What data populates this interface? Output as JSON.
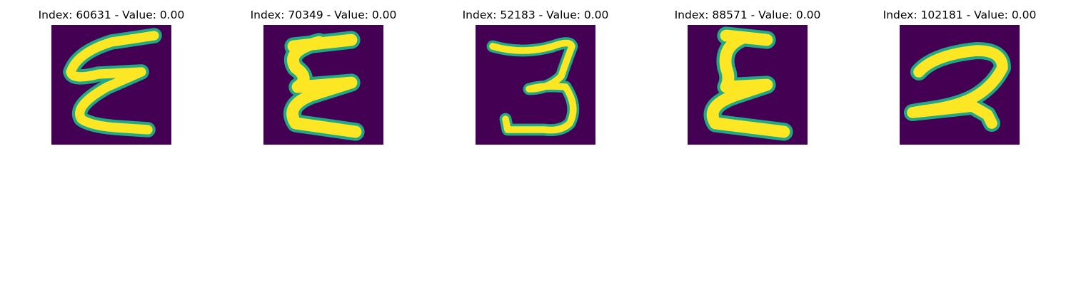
{
  "background_color": "#440154",
  "stroke_color": "#fde725",
  "edge_color": "#22a884",
  "panels": [
    {
      "title": "Index: 60631 - Value: 0.00",
      "glyph": "epsilon-like handwritten character"
    },
    {
      "title": "Index: 70349 - Value: 0.00",
      "glyph": "sigma-like handwritten character"
    },
    {
      "title": "Index: 52183 - Value: 0.00",
      "glyph": "three-like handwritten character"
    },
    {
      "title": "Index: 88571 - Value: 0.00",
      "glyph": "sigma-like handwritten character"
    },
    {
      "title": "Index: 102181 - Value: 0.00",
      "glyph": "two-like handwritten character"
    }
  ]
}
